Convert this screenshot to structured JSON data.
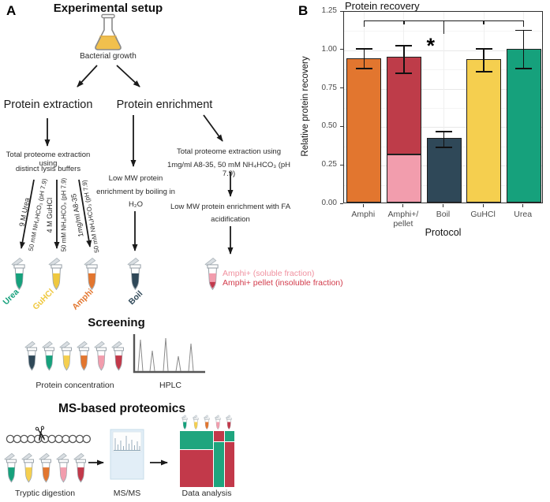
{
  "figure": {
    "panel_a": {
      "label": "A",
      "title": "Experimental setup",
      "flask_label": "Bacterial growth",
      "branch_left_title": "Protein extraction",
      "branch_right_title": "Protein enrichment",
      "extraction_note_line1": "Total proteome extraction using",
      "extraction_note_line2": "distinct lysis buffers",
      "buffer_labels": [
        {
          "line1": "9 M Urea",
          "line2": "50 mM NH₄HCO₃ (pH 7.9)"
        },
        {
          "line1": "4 M GuHCl",
          "line2": "50 mM NH₄HCO₃ (pH 7.9)"
        },
        {
          "line1": "1mg/ml A8-35",
          "line2": "50 mM NH₄HCO₃ (pH 7.9)"
        }
      ],
      "tubes": [
        {
          "label": "Urea",
          "color": "#16A17C"
        },
        {
          "label": "GuHCl",
          "color": "#EFC83F"
        },
        {
          "label": "Amphi",
          "color": "#E2762F"
        },
        {
          "label": "Boil",
          "color": "#2F4858"
        }
      ],
      "boil_note_line1": "Low MW protein",
      "boil_note_line2": "enrichment by boiling in",
      "boil_note_line3": "H₂O",
      "amphi_note_line1": "Total proteome extraction using",
      "amphi_note_line2": "1mg/ml A8-35,  50 mM NH₄HCO₃ (pH 7.9)",
      "fa_note_line1": "Low MW protein enrichment with FA",
      "fa_note_line2": "acidification",
      "amphi_soluble_label": "Amphi+ (soluble fraction)",
      "amphi_soluble_color": "#F0919F",
      "amphi_pellet_label": "Amphi+ pellet (insoluble fraction)",
      "amphi_pellet_color": "#D23B4B",
      "screening": {
        "title": "Screening",
        "tubes_label": "Protein concentration",
        "hplc_label": "HPLC"
      },
      "ms": {
        "title": "MS-based proteomics",
        "step1_label": "Tryptic digestion",
        "step2_label": "MS/MS",
        "step3_label": "Data analysis"
      }
    },
    "panel_b": {
      "label": "B"
    }
  },
  "palette": {
    "orange": "#E2762F",
    "dark_red": "#BE3C49",
    "pink": "#F29DAD",
    "navy": "#2F4858",
    "yellow": "#F5CF4F",
    "teal": "#16A17C"
  },
  "chart_data": {
    "type": "bar",
    "title": "Protein recovery",
    "xlabel": "Protocol",
    "ylabel": "Relative protein recovery",
    "ylim": [
      0,
      1.25
    ],
    "yticks": [
      "0.00",
      "0.25",
      "0.50",
      "0.75",
      "1.00",
      "1.25"
    ],
    "grid": true,
    "categories": [
      "Amphi",
      "Amphi+/pellet",
      "Boil",
      "GuHCl",
      "Urea"
    ],
    "bars": [
      {
        "category": "Amphi",
        "label": "Amphi",
        "value": 0.94,
        "error_low": 0.88,
        "error_high": 1.01,
        "segments": [
          {
            "color": "#E2762F",
            "value": 0.94
          }
        ]
      },
      {
        "category": "Amphi+/pellet",
        "label": "Amphi+/\npellet",
        "value": 0.94,
        "error_low": 0.85,
        "error_high": 1.03,
        "segments": [
          {
            "color": "#F29DAD",
            "value": 0.315
          },
          {
            "color": "#BE3C49",
            "value": 0.625
          }
        ]
      },
      {
        "category": "Boil",
        "label": "Boil",
        "value": 0.42,
        "error_low": 0.37,
        "error_high": 0.47,
        "segments": [
          {
            "color": "#2F4858",
            "value": 0.42
          }
        ]
      },
      {
        "category": "GuHCl",
        "label": "GuHCl",
        "value": 0.93,
        "error_low": 0.86,
        "error_high": 1.01,
        "segments": [
          {
            "color": "#F5CF4F",
            "value": 0.93
          }
        ]
      },
      {
        "category": "Urea",
        "label": "Urea",
        "value": 1.0,
        "error_low": 0.88,
        "error_high": 1.13,
        "segments": [
          {
            "color": "#16A17C",
            "value": 1.0
          }
        ]
      }
    ],
    "significance": {
      "label": "*",
      "bracket_y": 1.195,
      "ticks": [
        {
          "bar": 0,
          "to": 1.155
        },
        {
          "bar": 1,
          "to": 1.17
        },
        {
          "bar": 2,
          "to": 1.105
        },
        {
          "bar": 3,
          "to": 1.17
        },
        {
          "bar": 4,
          "to": 1.155
        }
      ]
    }
  }
}
